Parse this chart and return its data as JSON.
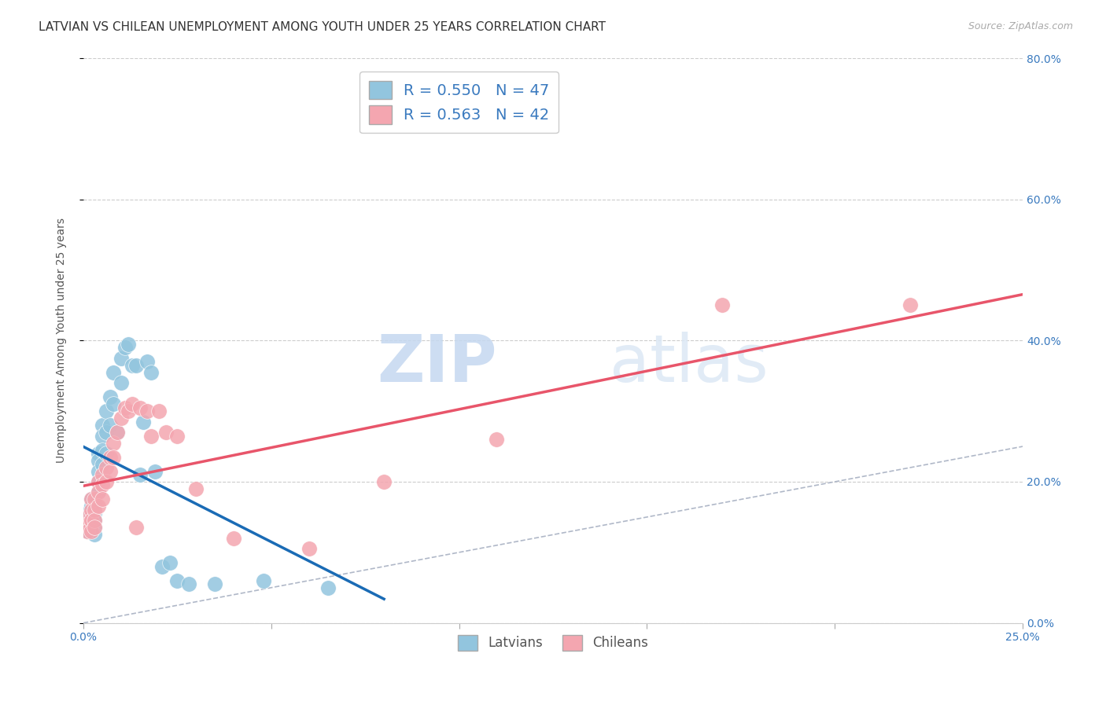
{
  "title": "LATVIAN VS CHILEAN UNEMPLOYMENT AMONG YOUTH UNDER 25 YEARS CORRELATION CHART",
  "source": "Source: ZipAtlas.com",
  "ylabel": "Unemployment Among Youth under 25 years",
  "xlim": [
    0.0,
    0.25
  ],
  "ylim": [
    0.0,
    0.8
  ],
  "xticks": [
    0.0,
    0.05,
    0.1,
    0.15,
    0.2,
    0.25
  ],
  "xtick_labels": [
    "0.0%",
    "",
    "",
    "",
    "",
    "25.0%"
  ],
  "yticks": [
    0.0,
    0.2,
    0.4,
    0.6,
    0.8
  ],
  "ytick_labels_right": [
    "0.0%",
    "20.0%",
    "40.0%",
    "60.0%",
    "80.0%"
  ],
  "latvian_R": "0.550",
  "latvian_N": "47",
  "chilean_R": "0.563",
  "chilean_N": "42",
  "latvian_color": "#92c5de",
  "chilean_color": "#f4a6b0",
  "latvian_line_color": "#1a6bb5",
  "chilean_line_color": "#e8556a",
  "diag_line_color": "#b0b8c8",
  "watermark_zip": "ZIP",
  "watermark_atlas": "atlas",
  "latvian_x": [
    0.001,
    0.001,
    0.001,
    0.002,
    0.002,
    0.002,
    0.002,
    0.003,
    0.003,
    0.003,
    0.003,
    0.003,
    0.004,
    0.004,
    0.004,
    0.004,
    0.004,
    0.005,
    0.005,
    0.005,
    0.005,
    0.006,
    0.006,
    0.006,
    0.007,
    0.007,
    0.008,
    0.008,
    0.009,
    0.01,
    0.01,
    0.011,
    0.012,
    0.013,
    0.014,
    0.015,
    0.016,
    0.017,
    0.018,
    0.019,
    0.021,
    0.023,
    0.025,
    0.028,
    0.035,
    0.048,
    0.065
  ],
  "latvian_y": [
    0.155,
    0.14,
    0.13,
    0.175,
    0.165,
    0.15,
    0.135,
    0.17,
    0.155,
    0.145,
    0.135,
    0.125,
    0.24,
    0.23,
    0.215,
    0.2,
    0.185,
    0.28,
    0.265,
    0.245,
    0.225,
    0.3,
    0.27,
    0.24,
    0.32,
    0.28,
    0.355,
    0.31,
    0.27,
    0.375,
    0.34,
    0.39,
    0.395,
    0.365,
    0.365,
    0.21,
    0.285,
    0.37,
    0.355,
    0.215,
    0.08,
    0.085,
    0.06,
    0.055,
    0.055,
    0.06,
    0.05
  ],
  "chilean_x": [
    0.001,
    0.001,
    0.001,
    0.002,
    0.002,
    0.002,
    0.002,
    0.003,
    0.003,
    0.003,
    0.003,
    0.004,
    0.004,
    0.004,
    0.005,
    0.005,
    0.005,
    0.006,
    0.006,
    0.007,
    0.007,
    0.008,
    0.008,
    0.009,
    0.01,
    0.011,
    0.012,
    0.013,
    0.014,
    0.015,
    0.017,
    0.018,
    0.02,
    0.022,
    0.025,
    0.03,
    0.04,
    0.06,
    0.08,
    0.11,
    0.17,
    0.22
  ],
  "chilean_y": [
    0.15,
    0.14,
    0.13,
    0.175,
    0.16,
    0.145,
    0.13,
    0.175,
    0.16,
    0.145,
    0.135,
    0.2,
    0.185,
    0.165,
    0.21,
    0.195,
    0.175,
    0.22,
    0.2,
    0.235,
    0.215,
    0.255,
    0.235,
    0.27,
    0.29,
    0.305,
    0.3,
    0.31,
    0.135,
    0.305,
    0.3,
    0.265,
    0.3,
    0.27,
    0.265,
    0.19,
    0.12,
    0.105,
    0.2,
    0.26,
    0.45,
    0.45
  ],
  "latvian_line_x": [
    0.0,
    0.08
  ],
  "chilean_line_x": [
    0.0,
    0.25
  ],
  "background_color": "#ffffff",
  "grid_color": "#cccccc",
  "title_fontsize": 11,
  "axis_label_fontsize": 10,
  "tick_fontsize": 10,
  "legend_fontsize": 14
}
